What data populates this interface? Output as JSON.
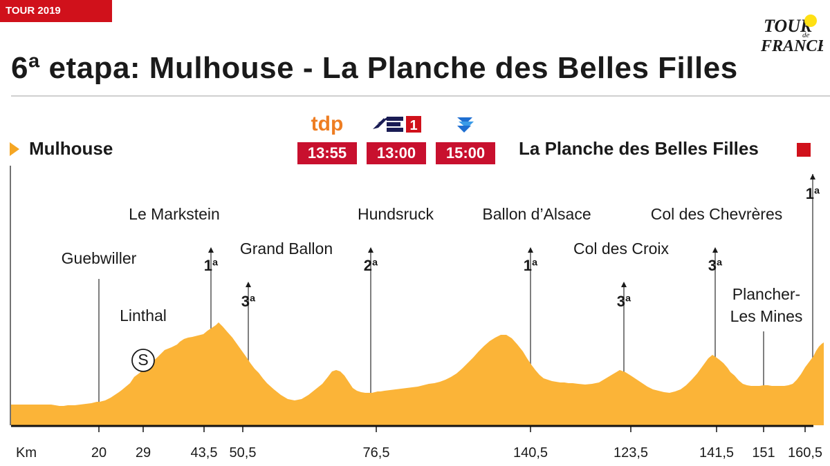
{
  "header": {
    "tag": "TOUR 2019",
    "title": "6ª etapa: Mulhouse - La Planche des Belles Filles",
    "logo_text": "TOUR de FRANCE"
  },
  "route": {
    "start": "Mulhouse",
    "finish": "La Planche des Belles Filles"
  },
  "broadcasts": [
    {
      "channel": "tdp",
      "time": "13:55",
      "icon": "tdp-logo"
    },
    {
      "channel": "Eurosport 1",
      "time": "13:00",
      "icon": "eurosport-1-logo"
    },
    {
      "channel": "Eurosport Player",
      "time": "15:00",
      "icon": "eurosport-player-logo"
    }
  ],
  "colors": {
    "profile_fill": "#fbb438",
    "accent_red": "#d0111b",
    "start_marker": "#f5a623"
  },
  "chart_data": {
    "type": "area",
    "title": "6ª etapa: Mulhouse - La Planche des Belles Filles",
    "xlabel": "Km",
    "ylabel": "",
    "grid": false,
    "legend": "none",
    "profile": {
      "x_index": [
        0,
        8,
        16,
        24,
        32,
        40,
        46,
        52,
        58,
        64,
        70,
        76,
        82,
        88,
        92,
        100,
        108,
        116,
        124,
        128,
        136,
        144,
        150,
        156,
        160,
        166,
        172,
        178,
        186,
        194,
        202,
        210,
        216,
        222,
        232,
        240,
        244,
        250,
        256,
        262,
        270,
        278,
        284,
        290,
        296,
        300,
        306,
        312,
        320,
        330,
        340,
        346,
        352,
        358,
        364,
        370,
        380,
        390,
        400,
        410,
        420,
        430,
        440,
        450,
        458,
        464,
        470,
        476,
        482,
        486,
        490,
        494,
        500,
        506,
        512,
        518,
        522,
        526,
        530,
        534,
        540,
        548,
        556,
        564,
        572,
        580,
        588,
        596,
        604,
        612,
        620,
        628,
        636,
        644,
        652,
        660,
        668,
        676,
        684,
        692,
        700,
        708,
        716,
        724,
        732,
        740,
        746,
        752,
        758,
        764,
        770,
        776,
        782,
        788,
        794,
        800,
        806,
        812,
        820,
        830,
        840,
        850,
        860,
        870,
        880,
        888,
        896,
        902,
        908,
        914,
        920,
        928,
        936,
        944,
        952,
        960,
        968,
        976,
        984,
        992,
        1000,
        1008,
        1014,
        1020,
        1024,
        1030,
        1036,
        1040,
        1046,
        1052,
        1058,
        1064,
        1070,
        1076,
        1082,
        1088,
        1094,
        1100,
        1106,
        1112,
        1118,
        1124,
        1130,
        1136,
        1142,
        1148,
        1154,
        1160,
        1164,
        1168,
        1172,
        1175
      ],
      "elevation_rel": [
        30,
        30,
        30,
        30,
        30,
        30,
        30,
        30,
        30,
        29,
        28,
        28,
        29,
        29,
        29,
        30,
        31,
        32,
        34,
        34,
        36,
        40,
        44,
        48,
        51,
        56,
        61,
        70,
        76,
        84,
        90,
        97,
        103,
        109,
        113,
        117,
        121,
        125,
        127,
        128,
        130,
        132,
        137,
        141,
        145,
        149,
        143,
        136,
        127,
        113,
        99,
        90,
        82,
        76,
        68,
        61,
        52,
        44,
        38,
        36,
        38,
        44,
        52,
        60,
        70,
        78,
        80,
        78,
        72,
        66,
        60,
        54,
        50,
        48,
        47,
        47,
        47,
        48,
        49,
        49,
        50,
        51,
        52,
        53,
        54,
        55,
        56,
        58,
        60,
        61,
        63,
        66,
        70,
        75,
        82,
        90,
        98,
        107,
        115,
        122,
        127,
        131,
        131,
        126,
        117,
        107,
        97,
        88,
        80,
        73,
        68,
        66,
        64,
        63,
        62,
        62,
        61,
        61,
        60,
        59,
        60,
        62,
        68,
        74,
        80,
        77,
        72,
        68,
        64,
        60,
        56,
        52,
        50,
        48,
        47,
        49,
        52,
        58,
        66,
        75,
        86,
        97,
        102,
        98,
        95,
        90,
        83,
        77,
        72,
        65,
        60,
        58,
        57,
        57,
        57,
        58,
        58,
        57,
        57,
        57,
        57,
        58,
        60,
        66,
        74,
        84,
        92,
        100,
        108,
        114,
        118,
        120,
        124
      ]
    },
    "x_ticks": [
      "Km",
      "20",
      "29",
      "43,5",
      "50,5",
      "76,5",
      "140,5",
      "123,5",
      "141,5",
      "151",
      "160,5"
    ],
    "waypoints": [
      {
        "name": "Guebwiller",
        "km": "20"
      },
      {
        "name": "Linthal",
        "km": "29",
        "sprint": "S"
      },
      {
        "name": "Le Markstein",
        "km": "43,5",
        "category": "1ª"
      },
      {
        "name": "Grand Ballon",
        "km": "50,5",
        "category": "3ª"
      },
      {
        "name": "Hundsruck",
        "km": "76,5",
        "category": "2ª"
      },
      {
        "name": "Ballon d’Alsace",
        "km": "140,5",
        "category": "1ª"
      },
      {
        "name": "Col des Croix",
        "km": "123,5",
        "category": "3ª"
      },
      {
        "name": "Col des Chevrères",
        "km": "141,5",
        "category": "3ª"
      },
      {
        "name": "Plancher-Les Mines",
        "name_lines": [
          "Plancher-",
          "Les Mines"
        ],
        "km": "151"
      },
      {
        "name": "La Planche des Belles Filles",
        "km": "160,5",
        "category": "1ª"
      }
    ]
  }
}
